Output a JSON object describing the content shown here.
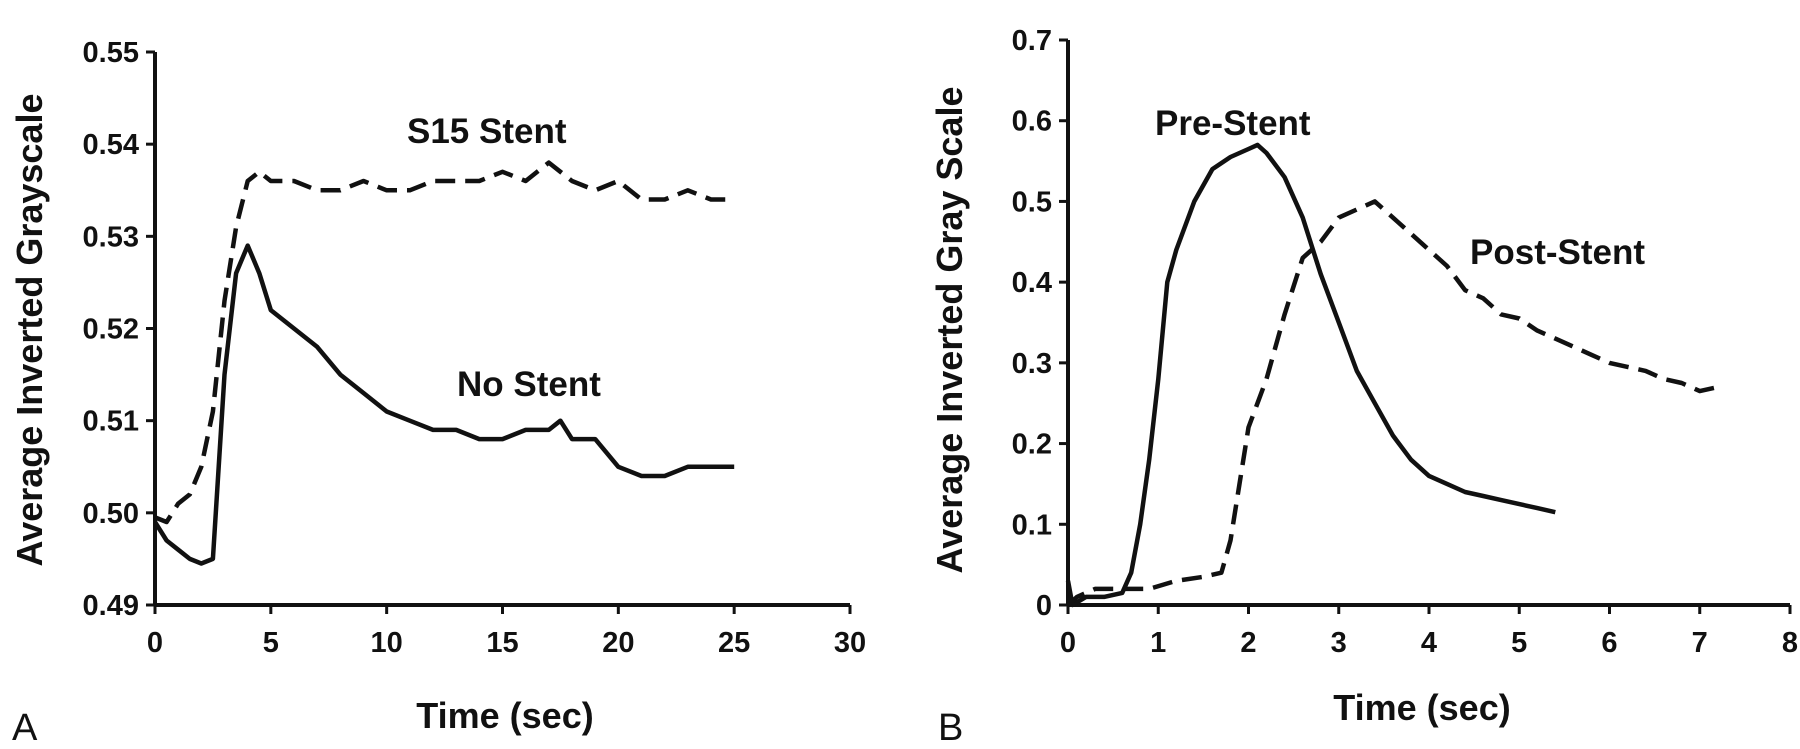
{
  "chart_data": [
    {
      "panel": "A",
      "type": "line",
      "xlabel": "Time (sec)",
      "ylabel": "Average Inverted Grayscale",
      "xlim": [
        0,
        30
      ],
      "ylim": [
        0.49,
        0.55
      ],
      "xticks": [
        "0",
        "5",
        "10",
        "15",
        "20",
        "25",
        "30"
      ],
      "yticks": [
        "0.49",
        "0.50",
        "0.51",
        "0.52",
        "0.53",
        "0.54",
        "0.55"
      ],
      "series": [
        {
          "name": "S15 Stent",
          "style": "dashed",
          "x": [
            0,
            0.5,
            1,
            1.5,
            2,
            2.5,
            3,
            3.5,
            4,
            4.5,
            5,
            6,
            7,
            8,
            9,
            10,
            11,
            12,
            13,
            14,
            15,
            16,
            17,
            18,
            19,
            20,
            21,
            22,
            23,
            24,
            25
          ],
          "y": [
            0.4995,
            0.499,
            0.501,
            0.502,
            0.505,
            0.511,
            0.523,
            0.531,
            0.536,
            0.537,
            0.536,
            0.536,
            0.535,
            0.535,
            0.536,
            0.535,
            0.535,
            0.536,
            0.536,
            0.536,
            0.537,
            0.536,
            0.538,
            0.536,
            0.535,
            0.536,
            0.534,
            0.534,
            0.535,
            0.534,
            0.534
          ]
        },
        {
          "name": "No Stent",
          "style": "solid",
          "x": [
            0,
            0.5,
            1,
            1.5,
            2,
            2.5,
            3,
            3.5,
            4,
            4.5,
            5,
            6,
            7,
            8,
            9,
            10,
            11,
            12,
            13,
            14,
            15,
            16,
            17,
            17.5,
            18,
            19,
            20,
            21,
            22,
            23,
            24,
            25
          ],
          "y": [
            0.499,
            0.497,
            0.496,
            0.495,
            0.4945,
            0.495,
            0.515,
            0.526,
            0.529,
            0.526,
            0.522,
            0.52,
            0.518,
            0.515,
            0.513,
            0.511,
            0.51,
            0.509,
            0.509,
            0.508,
            0.508,
            0.509,
            0.509,
            0.51,
            0.508,
            0.508,
            0.505,
            0.504,
            0.504,
            0.505,
            0.505,
            0.505
          ]
        }
      ],
      "annotations": [
        "S15 Stent",
        "No Stent"
      ]
    },
    {
      "panel": "B",
      "type": "line",
      "xlabel": "Time (sec)",
      "ylabel": "Average Inverted Gray Scale",
      "xlim": [
        0,
        8
      ],
      "ylim": [
        0,
        0.7
      ],
      "xticks": [
        "0",
        "1",
        "2",
        "3",
        "4",
        "5",
        "6",
        "7",
        "8"
      ],
      "yticks": [
        "0",
        "0.1",
        "0.2",
        "0.3",
        "0.4",
        "0.5",
        "0.6",
        "0.7"
      ],
      "series": [
        {
          "name": "Pre-Stent",
          "style": "solid",
          "x": [
            0,
            0.05,
            0.2,
            0.4,
            0.6,
            0.7,
            0.8,
            0.9,
            1.0,
            1.1,
            1.2,
            1.4,
            1.6,
            1.8,
            2.0,
            2.1,
            2.2,
            2.4,
            2.6,
            2.8,
            3.0,
            3.2,
            3.4,
            3.6,
            3.8,
            4.0,
            4.2,
            4.4,
            4.6,
            4.8,
            5.0,
            5.2,
            5.4
          ],
          "y": [
            0.03,
            0.0,
            0.01,
            0.01,
            0.015,
            0.04,
            0.1,
            0.18,
            0.28,
            0.4,
            0.44,
            0.5,
            0.54,
            0.555,
            0.565,
            0.57,
            0.56,
            0.53,
            0.48,
            0.41,
            0.35,
            0.29,
            0.25,
            0.21,
            0.18,
            0.16,
            0.15,
            0.14,
            0.135,
            0.13,
            0.125,
            0.12,
            0.115
          ]
        },
        {
          "name": "Post-Stent",
          "style": "dashed",
          "x": [
            0,
            0.1,
            0.3,
            0.6,
            0.9,
            1.2,
            1.5,
            1.7,
            1.8,
            1.9,
            2.0,
            2.1,
            2.2,
            2.4,
            2.6,
            2.8,
            3.0,
            3.2,
            3.4,
            3.6,
            3.8,
            4.0,
            4.2,
            4.4,
            4.6,
            4.8,
            5.0,
            5.2,
            5.4,
            5.6,
            5.8,
            6.0,
            6.2,
            6.4,
            6.6,
            6.8,
            7.0,
            7.2
          ],
          "y": [
            0.0,
            0.01,
            0.02,
            0.02,
            0.02,
            0.03,
            0.035,
            0.04,
            0.08,
            0.15,
            0.22,
            0.25,
            0.28,
            0.36,
            0.43,
            0.45,
            0.48,
            0.49,
            0.5,
            0.48,
            0.46,
            0.44,
            0.42,
            0.39,
            0.38,
            0.36,
            0.355,
            0.34,
            0.33,
            0.32,
            0.31,
            0.3,
            0.295,
            0.29,
            0.28,
            0.275,
            0.265,
            0.27
          ]
        }
      ],
      "annotations": [
        "Pre-Stent",
        "Post-Stent"
      ]
    }
  ],
  "panels": {
    "a": {
      "letter": "A",
      "label_s15": "S15 Stent",
      "label_nostent": "No Stent"
    },
    "b": {
      "letter": "B",
      "label_pre": "Pre-Stent",
      "label_post": "Post-Stent"
    }
  }
}
